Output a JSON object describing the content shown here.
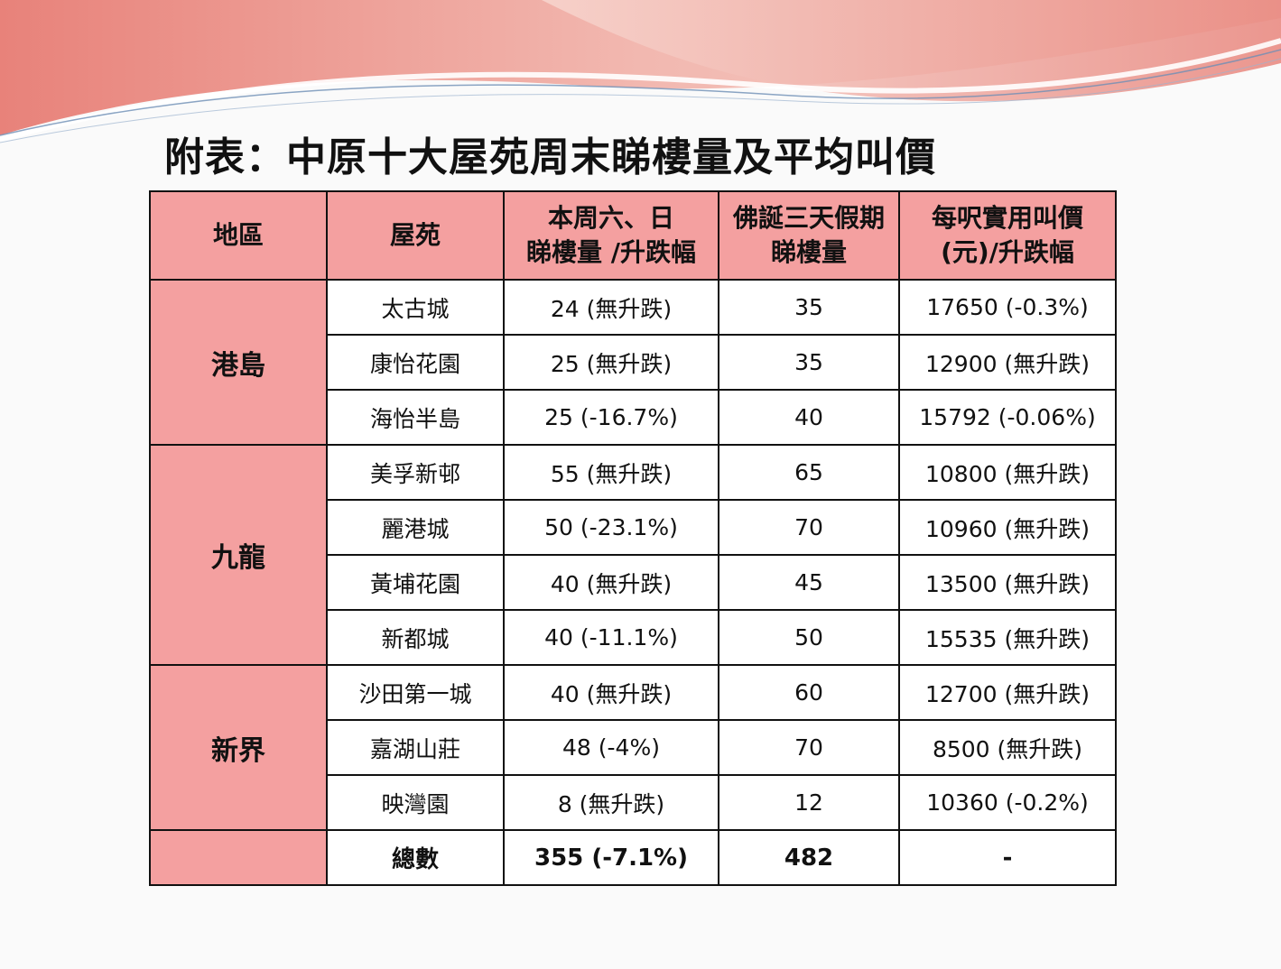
{
  "theme": {
    "header_fill": "#f4a0a0",
    "wave_colors": [
      "#e8827a",
      "#f2b8b0",
      "#6e8fb5"
    ]
  },
  "title": "附表：中原十大屋苑周末睇樓量及平均叫價",
  "table": {
    "headers": {
      "region": [
        "地區"
      ],
      "estate": [
        "屋苑"
      ],
      "weekend": [
        "本周六、日",
        "睇樓量 /升跌幅"
      ],
      "holiday": [
        "佛誕三天假期",
        "睇樓量"
      ],
      "price": [
        "每呎實用叫價",
        "(元)/升跌幅"
      ]
    },
    "groups": [
      {
        "region": "港島",
        "rows": [
          {
            "estate": "太古城",
            "weekend": "24 (無升跌)",
            "holiday": "35",
            "price": "17650 (-0.3%)"
          },
          {
            "estate": "康怡花園",
            "weekend": "25 (無升跌)",
            "holiday": "35",
            "price": "12900 (無升跌)"
          },
          {
            "estate": "海怡半島",
            "weekend": "25 (-16.7%)",
            "holiday": "40",
            "price": "15792 (-0.06%)"
          }
        ]
      },
      {
        "region": "九龍",
        "rows": [
          {
            "estate": "美孚新邨",
            "weekend": "55 (無升跌)",
            "holiday": "65",
            "price": "10800 (無升跌)"
          },
          {
            "estate": "麗港城",
            "weekend": "50 (-23.1%)",
            "holiday": "70",
            "price": "10960 (無升跌)"
          },
          {
            "estate": "黃埔花園",
            "weekend": "40 (無升跌)",
            "holiday": "45",
            "price": "13500 (無升跌)"
          },
          {
            "estate": "新都城",
            "weekend": "40 (-11.1%)",
            "holiday": "50",
            "price": "15535 (無升跌)"
          }
        ]
      },
      {
        "region": "新界",
        "rows": [
          {
            "estate": "沙田第一城",
            "weekend": "40 (無升跌)",
            "holiday": "60",
            "price": "12700 (無升跌)"
          },
          {
            "estate": "嘉湖山莊",
            "weekend": "48 (-4%)",
            "holiday": "70",
            "price": "8500 (無升跌)"
          },
          {
            "estate": "映灣園",
            "weekend": "8 (無升跌)",
            "holiday": "12",
            "price": "10360 (-0.2%)"
          }
        ]
      }
    ],
    "total": {
      "label": "總數",
      "weekend": "355 (-7.1%)",
      "holiday": "482",
      "price": "-"
    }
  }
}
